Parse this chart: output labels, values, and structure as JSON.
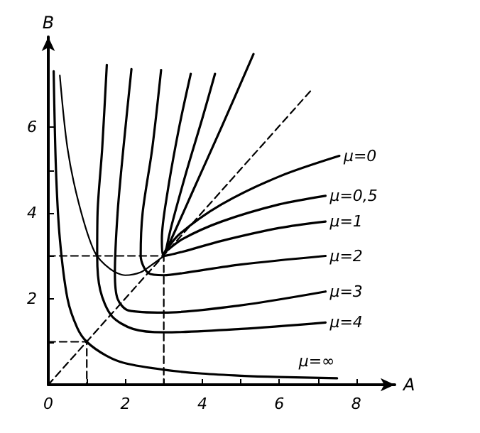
{
  "chart_data": {
    "type": "line",
    "xlabel": "A",
    "ylabel": "B",
    "xlim": [
      0,
      9
    ],
    "ylim": [
      0,
      8.1
    ],
    "xticks": [
      0,
      {
        "value": 1,
        "label": null
      },
      2,
      {
        "value": 3,
        "label": null
      },
      4,
      {
        "value": 5,
        "label": null
      },
      6,
      {
        "value": 7,
        "label": null
      },
      8
    ],
    "yticks": [
      {
        "value": 1,
        "label": null
      },
      2,
      {
        "value": 3,
        "label": null
      },
      4,
      {
        "value": 5,
        "label": null
      },
      6
    ],
    "grid": false,
    "legend": false,
    "marker": "none",
    "line_style": "solid",
    "series": [
      {
        "name": "μ=0",
        "color": "#000000",
        "x": [
          5.33,
          4.5,
          3.8,
          3.2,
          3.0,
          3.4,
          4.5,
          6,
          7.56
        ],
        "values": [
          7.7,
          6.0,
          4.6,
          3.4,
          3.05,
          3.5,
          4.2,
          4.85,
          5.33
        ]
      },
      {
        "name": "μ=0,5",
        "color": "#000000",
        "x": [
          4.33,
          4.0,
          3.6,
          3.2,
          3.05,
          3.5,
          4.5,
          6,
          7.2
        ],
        "values": [
          7.24,
          6.2,
          5.0,
          3.7,
          3.1,
          3.4,
          3.8,
          4.2,
          4.4
        ]
      },
      {
        "name": "μ=1",
        "color": "#000000",
        "x": [
          3.7,
          3.4,
          3.1,
          2.95,
          3.0,
          3.5,
          4.5,
          6,
          7.2
        ],
        "values": [
          7.24,
          6.0,
          4.5,
          3.4,
          3.0,
          3.1,
          3.35,
          3.65,
          3.8
        ]
      },
      {
        "name": "μ=2",
        "color": "#000000",
        "x": [
          2.93,
          2.7,
          2.45,
          2.4,
          2.6,
          3.0,
          3.5,
          5,
          7.2
        ],
        "values": [
          7.33,
          5.5,
          4.0,
          3.0,
          2.6,
          2.55,
          2.6,
          2.8,
          3.0
        ]
      },
      {
        "name": "μ=3",
        "color": "#000000",
        "x": [
          2.16,
          1.95,
          1.8,
          1.73,
          1.8,
          2.08,
          3,
          5,
          7.2
        ],
        "values": [
          7.35,
          5.5,
          4.0,
          2.6,
          2.0,
          1.73,
          1.68,
          1.85,
          2.17
        ]
      },
      {
        "name": "μ=4",
        "color": "#000000",
        "x": [
          1.52,
          1.4,
          1.28,
          1.27,
          1.35,
          1.65,
          2.2,
          3.0,
          5,
          7.2
        ],
        "values": [
          7.45,
          5.5,
          4.0,
          3.0,
          2.2,
          1.6,
          1.3,
          1.22,
          1.3,
          1.45
        ]
      },
      {
        "name": "μ=∞",
        "color": "#000000",
        "x": [
          0.14,
          0.2,
          0.3,
          0.5,
          0.75,
          1,
          1.5,
          2,
          3,
          4,
          5,
          6,
          7.5
        ],
        "values": [
          7.3,
          5,
          3.4,
          2,
          1.33,
          1,
          0.68,
          0.5,
          0.35,
          0.26,
          0.21,
          0.18,
          0.15
        ]
      },
      {
        "color": "#000000",
        "x": [
          0.3,
          0.5,
          0.8,
          1.2,
          1.6,
          2.0,
          2.4,
          2.7,
          3
        ],
        "values": [
          7.2,
          5.5,
          4.2,
          3.1,
          2.7,
          2.55,
          2.62,
          2.8,
          3
        ]
      },
      {
        "color": "#000000",
        "line_style": "dashed",
        "x": [
          0,
          3,
          3
        ],
        "values": [
          3,
          3,
          0
        ]
      },
      {
        "color": "#000000",
        "line_style": "dashed",
        "x": [
          0,
          1,
          1
        ],
        "values": [
          1,
          1,
          0
        ]
      },
      {
        "color": "#000000",
        "line_style": "dashed",
        "x": [
          0,
          6.83
        ],
        "values": [
          0,
          6.86
        ]
      }
    ]
  }
}
